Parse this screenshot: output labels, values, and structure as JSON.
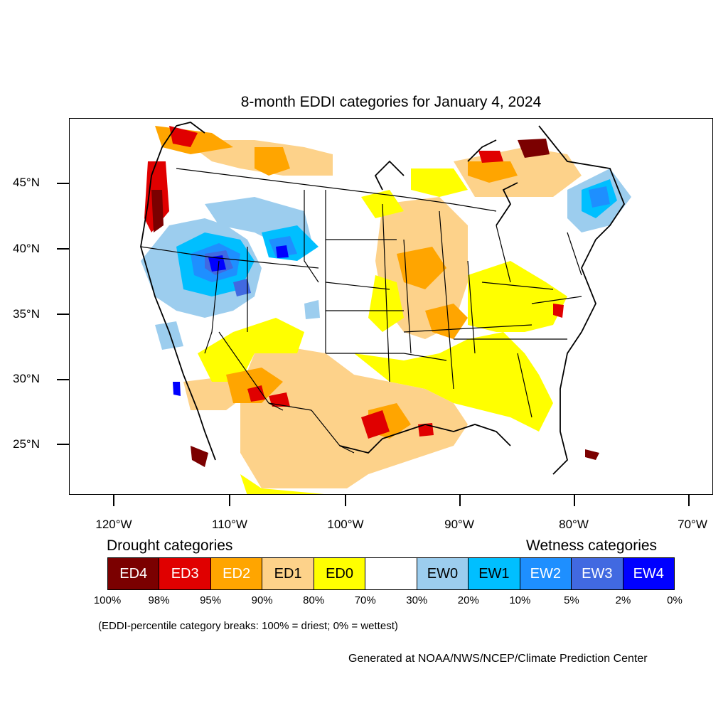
{
  "title": "8-month EDDI categories for January 4, 2024",
  "axes": {
    "lat_labels": [
      "45°N",
      "40°N",
      "35°N",
      "30°N",
      "25°N"
    ],
    "lon_labels": [
      "120°W",
      "110°W",
      "100°W",
      "90°W",
      "80°W",
      "70°W"
    ]
  },
  "legend": {
    "drought_heading": "Drought categories",
    "wetness_heading": "Wetness categories",
    "categories": [
      {
        "label": "ED4",
        "color": "#7b0000",
        "text_color": "#ffffff"
      },
      {
        "label": "ED3",
        "color": "#e00000",
        "text_color": "#ffffff"
      },
      {
        "label": "ED2",
        "color": "#ffa500",
        "text_color": "#ffffff"
      },
      {
        "label": "ED1",
        "color": "#fdd28a",
        "text_color": "#000000"
      },
      {
        "label": "ED0",
        "color": "#ffff00",
        "text_color": "#000000"
      },
      {
        "label": "",
        "color": "#ffffff",
        "text_color": "#000000"
      },
      {
        "label": "EW0",
        "color": "#9ccdee",
        "text_color": "#000000"
      },
      {
        "label": "EW1",
        "color": "#00bfff",
        "text_color": "#000000"
      },
      {
        "label": "EW2",
        "color": "#1e8fff",
        "text_color": "#ffffff"
      },
      {
        "label": "EW3",
        "color": "#4169e1",
        "text_color": "#ffffff"
      },
      {
        "label": "EW4",
        "color": "#0000ff",
        "text_color": "#ffffff"
      }
    ],
    "percentiles": [
      "100%",
      "98%",
      "95%",
      "90%",
      "80%",
      "70%",
      "30%",
      "20%",
      "10%",
      "5%",
      "2%",
      "0%"
    ],
    "breaks_note": "(EDDI-percentile category breaks: 100% = driest; 0% = wettest)"
  },
  "credit": "Generated at NOAA/NWS/NCEP/Climate Prediction Center"
}
